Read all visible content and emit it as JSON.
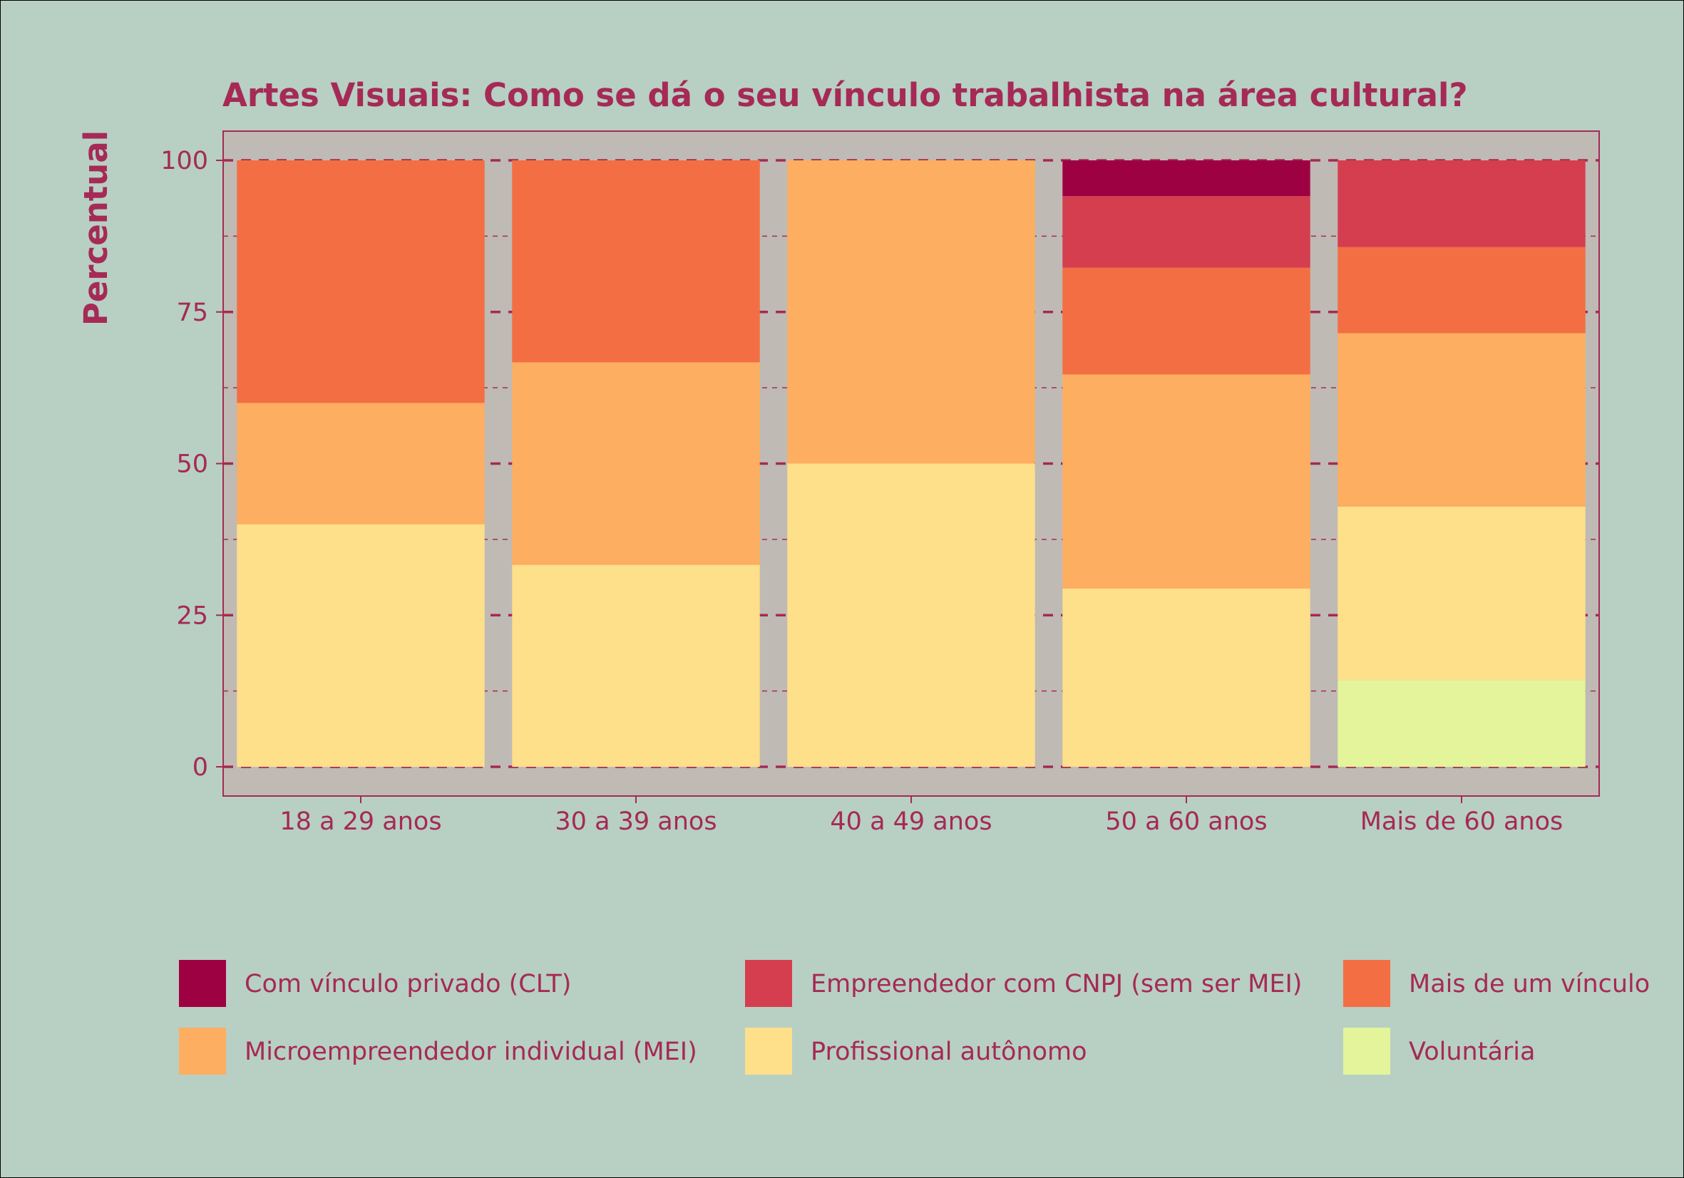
{
  "chart_data": {
    "type": "bar",
    "stacked": true,
    "title": "Artes Visuais: Como se dá o seu vínculo trabalhista na área cultural?",
    "xlabel": "",
    "ylabel": "Percentual",
    "ylim": [
      0,
      100
    ],
    "yticks": [
      "0",
      "25",
      "50",
      "75",
      "100"
    ],
    "grid": true,
    "legend_position": "bottom",
    "categories": [
      "18 a 29 anos",
      "30 a 39 anos",
      "40 a 49 anos",
      "50 a 60 anos",
      "Mais de 60 anos"
    ],
    "series": [
      {
        "name": "Voluntária",
        "color": "#e3f49a",
        "values": [
          0,
          0,
          0,
          0,
          14.3
        ]
      },
      {
        "name": "Profissional autônomo",
        "color": "#fedf8a",
        "values": [
          40,
          33.3,
          50,
          29.4,
          28.6
        ]
      },
      {
        "name": "Microempreendedor individual  (MEI)",
        "color": "#fdae60",
        "values": [
          20,
          33.4,
          50,
          35.3,
          28.6
        ]
      },
      {
        "name": "Mais de um vínculo",
        "color": "#f46e43",
        "values": [
          40,
          33.3,
          0,
          17.6,
          14.2
        ]
      },
      {
        "name": "Empreendedor com CNPJ (sem ser MEI)",
        "color": "#d53e4f",
        "values": [
          0,
          0,
          0,
          11.8,
          14.3
        ]
      },
      {
        "name": "Com vínculo privado (CLT)",
        "color": "#9e0142",
        "values": [
          0,
          0,
          0,
          5.9,
          0
        ]
      }
    ],
    "legend_order": [
      "Com vínculo privado (CLT)",
      "Empreendedor com CNPJ (sem ser MEI)",
      "Mais de um vínculo",
      "Microempreendedor individual  (MEI)",
      "Profissional autônomo",
      "Voluntária"
    ]
  },
  "colors": {
    "background": "#b8cfc4",
    "panel": "#bfbab4",
    "text": "#a52a55",
    "grid": "#a52a55"
  }
}
